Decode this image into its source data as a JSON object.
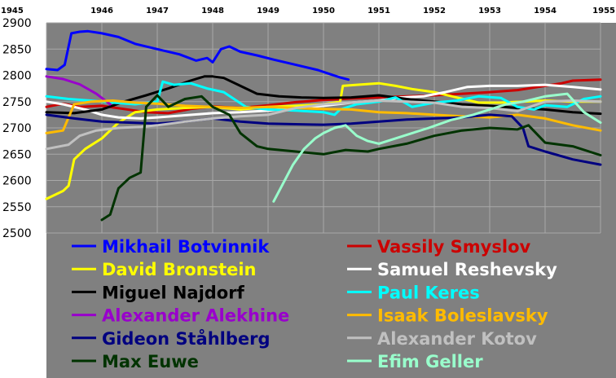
{
  "chart_data": {
    "type": "line",
    "title": "",
    "xlabel": "",
    "ylabel": "",
    "xlim": [
      1945,
      1955
    ],
    "ylim": [
      2500,
      2900
    ],
    "x_ticks": [
      1945,
      1946,
      1947,
      1948,
      1949,
      1950,
      1951,
      1952,
      1953,
      1954,
      1955
    ],
    "y_ticks": [
      2500,
      2550,
      2600,
      2650,
      2700,
      2750,
      2800,
      2850,
      2900
    ],
    "grid": true,
    "legend_position": "bottom (inside plot area, two columns)",
    "plot_background": "#808080",
    "series": [
      {
        "name": "Mikhail Botvinnik",
        "color": "#0000ff",
        "points": [
          [
            1945.0,
            2812
          ],
          [
            1945.2,
            2810
          ],
          [
            1945.33,
            2820
          ],
          [
            1945.45,
            2880
          ],
          [
            1945.6,
            2883
          ],
          [
            1945.75,
            2884
          ],
          [
            1946.0,
            2880
          ],
          [
            1946.3,
            2873
          ],
          [
            1946.6,
            2860
          ],
          [
            1947.0,
            2850
          ],
          [
            1947.4,
            2840
          ],
          [
            1947.7,
            2828
          ],
          [
            1947.9,
            2833
          ],
          [
            1948.0,
            2825
          ],
          [
            1948.15,
            2850
          ],
          [
            1948.3,
            2855
          ],
          [
            1948.5,
            2845
          ],
          [
            1948.8,
            2838
          ],
          [
            1949.1,
            2830
          ],
          [
            1949.5,
            2820
          ],
          [
            1949.9,
            2810
          ],
          [
            1950.1,
            2803
          ],
          [
            1950.3,
            2796
          ],
          [
            1950.45,
            2792
          ]
        ]
      },
      {
        "name": "Vassily Smyslov",
        "color": "#cc0000",
        "points": [
          [
            1945.0,
            2740
          ],
          [
            1945.3,
            2746
          ],
          [
            1945.6,
            2740
          ],
          [
            1946.0,
            2742
          ],
          [
            1946.4,
            2736
          ],
          [
            1946.8,
            2730
          ],
          [
            1947.2,
            2728
          ],
          [
            1947.6,
            2736
          ],
          [
            1948.0,
            2741
          ],
          [
            1948.5,
            2738
          ],
          [
            1949.0,
            2743
          ],
          [
            1949.5,
            2749
          ],
          [
            1950.0,
            2753
          ],
          [
            1950.5,
            2756
          ],
          [
            1951.0,
            2758
          ],
          [
            1951.5,
            2760
          ],
          [
            1952.0,
            2762
          ],
          [
            1952.5,
            2765
          ],
          [
            1953.0,
            2768
          ],
          [
            1953.5,
            2772
          ],
          [
            1954.0,
            2780
          ],
          [
            1954.3,
            2785
          ],
          [
            1954.5,
            2790
          ],
          [
            1955.0,
            2792
          ]
        ]
      },
      {
        "name": "David Bronstein",
        "color": "#ffff00",
        "points": [
          [
            1945.0,
            2565
          ],
          [
            1945.3,
            2580
          ],
          [
            1945.4,
            2590
          ],
          [
            1945.5,
            2640
          ],
          [
            1945.7,
            2660
          ],
          [
            1946.0,
            2680
          ],
          [
            1946.3,
            2710
          ],
          [
            1946.6,
            2730
          ],
          [
            1947.0,
            2735
          ],
          [
            1947.5,
            2738
          ],
          [
            1948.0,
            2740
          ],
          [
            1948.5,
            2735
          ],
          [
            1949.0,
            2740
          ],
          [
            1949.5,
            2742
          ],
          [
            1950.0,
            2745
          ],
          [
            1950.3,
            2750
          ],
          [
            1950.35,
            2780
          ],
          [
            1950.6,
            2782
          ],
          [
            1951.0,
            2785
          ],
          [
            1951.3,
            2780
          ],
          [
            1951.6,
            2774
          ],
          [
            1952.0,
            2768
          ],
          [
            1952.4,
            2758
          ],
          [
            1952.8,
            2748
          ],
          [
            1953.2,
            2748
          ],
          [
            1953.6,
            2750
          ],
          [
            1954.0,
            2752
          ],
          [
            1954.5,
            2750
          ],
          [
            1955.0,
            2750
          ]
        ]
      },
      {
        "name": "Samuel Reshevsky",
        "color": "#ffffff",
        "points": [
          [
            1945.0,
            2750
          ],
          [
            1945.3,
            2745
          ],
          [
            1945.7,
            2735
          ],
          [
            1946.0,
            2725
          ],
          [
            1946.3,
            2720
          ],
          [
            1946.7,
            2718
          ],
          [
            1947.0,
            2720
          ],
          [
            1947.5,
            2724
          ],
          [
            1948.0,
            2728
          ],
          [
            1948.5,
            2730
          ],
          [
            1949.0,
            2733
          ],
          [
            1949.5,
            2738
          ],
          [
            1950.0,
            2742
          ],
          [
            1950.5,
            2748
          ],
          [
            1951.0,
            2752
          ],
          [
            1951.4,
            2758
          ],
          [
            1951.8,
            2760
          ],
          [
            1952.2,
            2768
          ],
          [
            1952.6,
            2778
          ],
          [
            1953.0,
            2780
          ],
          [
            1953.5,
            2780
          ],
          [
            1954.0,
            2782
          ],
          [
            1954.5,
            2778
          ],
          [
            1955.0,
            2773
          ]
        ]
      },
      {
        "name": "Miguel Najdorf",
        "color": "#000000",
        "points": [
          [
            1945.0,
            2730
          ],
          [
            1945.5,
            2728
          ],
          [
            1946.0,
            2735
          ],
          [
            1946.4,
            2750
          ],
          [
            1946.8,
            2762
          ],
          [
            1947.2,
            2775
          ],
          [
            1947.6,
            2790
          ],
          [
            1947.85,
            2798
          ],
          [
            1948.0,
            2798
          ],
          [
            1948.2,
            2795
          ],
          [
            1948.5,
            2780
          ],
          [
            1948.8,
            2765
          ],
          [
            1949.2,
            2760
          ],
          [
            1949.6,
            2758
          ],
          [
            1950.0,
            2757
          ],
          [
            1950.5,
            2758
          ],
          [
            1951.0,
            2762
          ],
          [
            1951.5,
            2755
          ],
          [
            1952.0,
            2750
          ],
          [
            1952.5,
            2745
          ],
          [
            1953.0,
            2742
          ],
          [
            1953.5,
            2738
          ],
          [
            1954.0,
            2735
          ],
          [
            1954.5,
            2730
          ],
          [
            1955.0,
            2727
          ]
        ]
      },
      {
        "name": "Paul Keres",
        "color": "#00ffff",
        "points": [
          [
            1945.0,
            2760
          ],
          [
            1945.4,
            2755
          ],
          [
            1945.8,
            2752
          ],
          [
            1946.2,
            2748
          ],
          [
            1946.6,
            2745
          ],
          [
            1947.0,
            2750
          ],
          [
            1947.1,
            2788
          ],
          [
            1947.3,
            2782
          ],
          [
            1947.6,
            2785
          ],
          [
            1947.9,
            2775
          ],
          [
            1948.2,
            2768
          ],
          [
            1948.6,
            2740
          ],
          [
            1949.0,
            2735
          ],
          [
            1949.5,
            2733
          ],
          [
            1950.0,
            2730
          ],
          [
            1950.2,
            2725
          ],
          [
            1950.3,
            2735
          ],
          [
            1950.6,
            2745
          ],
          [
            1951.0,
            2750
          ],
          [
            1951.3,
            2758
          ],
          [
            1951.6,
            2740
          ],
          [
            1952.0,
            2748
          ],
          [
            1952.4,
            2752
          ],
          [
            1952.8,
            2760
          ],
          [
            1953.2,
            2757
          ],
          [
            1953.5,
            2740
          ],
          [
            1953.8,
            2735
          ],
          [
            1954.0,
            2743
          ],
          [
            1954.4,
            2740
          ],
          [
            1954.7,
            2755
          ],
          [
            1955.0,
            2760
          ]
        ]
      },
      {
        "name": "Alexander Alekhine",
        "color": "#9900cc",
        "points": [
          [
            1945.0,
            2798
          ],
          [
            1945.3,
            2793
          ],
          [
            1945.6,
            2783
          ],
          [
            1945.9,
            2765
          ],
          [
            1946.15,
            2745
          ]
        ]
      },
      {
        "name": "Isaak Boleslavsky",
        "color": "#ffbb00",
        "points": [
          [
            1945.0,
            2690
          ],
          [
            1945.3,
            2695
          ],
          [
            1945.5,
            2745
          ],
          [
            1945.8,
            2750
          ],
          [
            1946.2,
            2752
          ],
          [
            1946.6,
            2748
          ],
          [
            1947.0,
            2746
          ],
          [
            1947.5,
            2742
          ],
          [
            1948.0,
            2740
          ],
          [
            1948.5,
            2738
          ],
          [
            1949.0,
            2740
          ],
          [
            1949.5,
            2738
          ],
          [
            1950.0,
            2736
          ],
          [
            1950.5,
            2735
          ],
          [
            1951.0,
            2730
          ],
          [
            1951.5,
            2728
          ],
          [
            1952.0,
            2725
          ],
          [
            1952.5,
            2722
          ],
          [
            1953.0,
            2720
          ],
          [
            1953.5,
            2725
          ],
          [
            1954.0,
            2718
          ],
          [
            1954.5,
            2705
          ],
          [
            1955.0,
            2695
          ]
        ]
      },
      {
        "name": "Gideon Ståhlberg",
        "color": "#000080",
        "points": [
          [
            1945.0,
            2725
          ],
          [
            1945.5,
            2718
          ],
          [
            1946.0,
            2712
          ],
          [
            1946.5,
            2710
          ],
          [
            1947.0,
            2708
          ],
          [
            1947.5,
            2712
          ],
          [
            1948.0,
            2718
          ],
          [
            1948.5,
            2712
          ],
          [
            1949.0,
            2708
          ],
          [
            1949.5,
            2707
          ],
          [
            1950.0,
            2706
          ],
          [
            1950.5,
            2708
          ],
          [
            1951.0,
            2712
          ],
          [
            1951.5,
            2716
          ],
          [
            1952.0,
            2718
          ],
          [
            1952.5,
            2720
          ],
          [
            1953.0,
            2725
          ],
          [
            1953.4,
            2722
          ],
          [
            1953.6,
            2700
          ],
          [
            1953.7,
            2665
          ],
          [
            1954.0,
            2655
          ],
          [
            1954.5,
            2640
          ],
          [
            1955.0,
            2630
          ]
        ]
      },
      {
        "name": "Alexander Kotov",
        "color": "#c0c0c0",
        "points": [
          [
            1945.0,
            2660
          ],
          [
            1945.4,
            2668
          ],
          [
            1945.6,
            2685
          ],
          [
            1945.9,
            2695
          ],
          [
            1946.3,
            2700
          ],
          [
            1946.7,
            2702
          ],
          [
            1947.0,
            2705
          ],
          [
            1947.5,
            2712
          ],
          [
            1948.0,
            2718
          ],
          [
            1948.5,
            2722
          ],
          [
            1949.0,
            2725
          ],
          [
            1949.5,
            2738
          ],
          [
            1950.0,
            2745
          ],
          [
            1950.5,
            2748
          ],
          [
            1951.0,
            2752
          ],
          [
            1951.5,
            2750
          ],
          [
            1952.0,
            2748
          ],
          [
            1952.5,
            2740
          ],
          [
            1953.0,
            2738
          ],
          [
            1953.5,
            2732
          ],
          [
            1954.0,
            2750
          ],
          [
            1954.5,
            2752
          ],
          [
            1955.0,
            2750
          ]
        ]
      },
      {
        "name": "Max Euwe",
        "color": "#003300",
        "points": [
          [
            1946.0,
            2525
          ],
          [
            1946.15,
            2535
          ],
          [
            1946.3,
            2585
          ],
          [
            1946.5,
            2605
          ],
          [
            1946.7,
            2615
          ],
          [
            1946.8,
            2740
          ],
          [
            1947.0,
            2762
          ],
          [
            1947.2,
            2740
          ],
          [
            1947.5,
            2755
          ],
          [
            1947.8,
            2760
          ],
          [
            1948.0,
            2740
          ],
          [
            1948.3,
            2725
          ],
          [
            1948.5,
            2690
          ],
          [
            1948.8,
            2665
          ],
          [
            1949.0,
            2660
          ],
          [
            1949.5,
            2655
          ],
          [
            1950.0,
            2650
          ],
          [
            1950.4,
            2658
          ],
          [
            1950.8,
            2655
          ],
          [
            1951.0,
            2660
          ],
          [
            1951.5,
            2670
          ],
          [
            1952.0,
            2685
          ],
          [
            1952.5,
            2695
          ],
          [
            1953.0,
            2700
          ],
          [
            1953.5,
            2697
          ],
          [
            1953.7,
            2705
          ],
          [
            1954.0,
            2672
          ],
          [
            1954.5,
            2665
          ],
          [
            1955.0,
            2648
          ]
        ]
      },
      {
        "name": "Efim Geller",
        "color": "#99ffcc",
        "points": [
          [
            1949.1,
            2560
          ],
          [
            1949.25,
            2590
          ],
          [
            1949.45,
            2630
          ],
          [
            1949.65,
            2660
          ],
          [
            1949.85,
            2680
          ],
          [
            1950.0,
            2690
          ],
          [
            1950.2,
            2700
          ],
          [
            1950.4,
            2705
          ],
          [
            1950.6,
            2685
          ],
          [
            1950.8,
            2675
          ],
          [
            1951.0,
            2670
          ],
          [
            1951.3,
            2680
          ],
          [
            1951.6,
            2690
          ],
          [
            1951.9,
            2700
          ],
          [
            1952.3,
            2715
          ],
          [
            1952.7,
            2725
          ],
          [
            1953.0,
            2735
          ],
          [
            1953.3,
            2745
          ],
          [
            1953.6,
            2750
          ],
          [
            1954.0,
            2760
          ],
          [
            1954.4,
            2765
          ],
          [
            1954.7,
            2730
          ],
          [
            1955.0,
            2710
          ]
        ]
      }
    ]
  }
}
